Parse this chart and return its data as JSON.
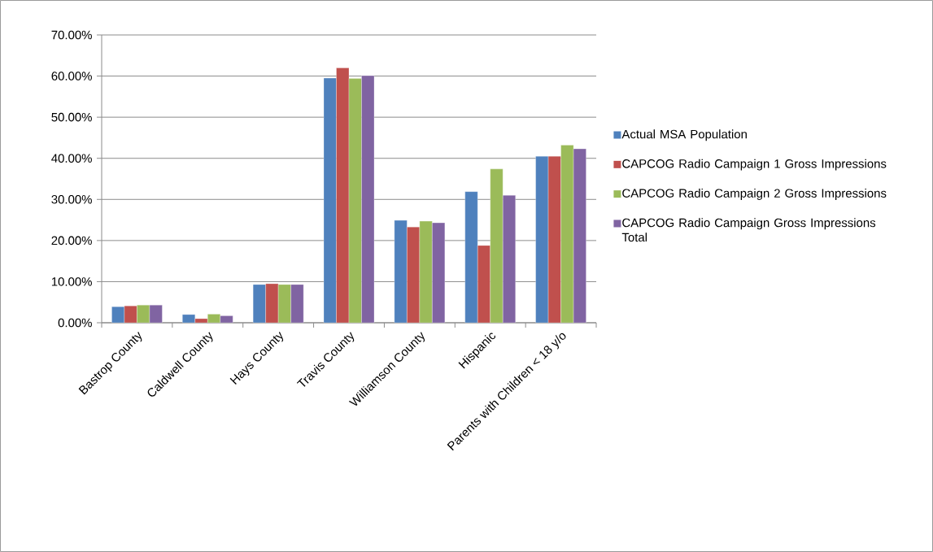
{
  "chart_data": {
    "type": "bar",
    "categories": [
      "Bastrop County",
      "Caldwell County",
      "Hays County",
      "Travis County",
      "Williamson County",
      "Hispanic",
      "Parents with Children < 18 y/o"
    ],
    "series": [
      {
        "name": "Actual MSA Population",
        "color": "#4f81bd",
        "values": [
          3.9,
          2.0,
          9.3,
          59.5,
          24.9,
          31.9,
          40.5
        ]
      },
      {
        "name": "CAPCOG Radio Campaign 1 Gross Impressions",
        "color": "#c0504d",
        "values": [
          4.1,
          1.0,
          9.5,
          62.0,
          23.3,
          18.8,
          40.5
        ]
      },
      {
        "name": "CAPCOG Radio Campaign 2 Gross Impressions",
        "color": "#9bbb59",
        "values": [
          4.3,
          2.1,
          9.3,
          59.4,
          24.7,
          37.4,
          43.2
        ]
      },
      {
        "name": "CAPCOG Radio Campaign Gross Impressions Total",
        "color": "#8064a2",
        "values": [
          4.3,
          1.7,
          9.3,
          60.1,
          24.3,
          31.0,
          42.3
        ]
      }
    ],
    "ylim": [
      0,
      70
    ],
    "yticks": [
      {
        "value": 0,
        "label": "0.00%"
      },
      {
        "value": 10,
        "label": "10.00%"
      },
      {
        "value": 20,
        "label": "20.00%"
      },
      {
        "value": 30,
        "label": "30.00%"
      },
      {
        "value": 40,
        "label": "40.00%"
      },
      {
        "value": 50,
        "label": "50.00%"
      },
      {
        "value": 60,
        "label": "60.00%"
      },
      {
        "value": 70,
        "label": "70.00%"
      }
    ],
    "grid": "y",
    "legend": "right"
  }
}
